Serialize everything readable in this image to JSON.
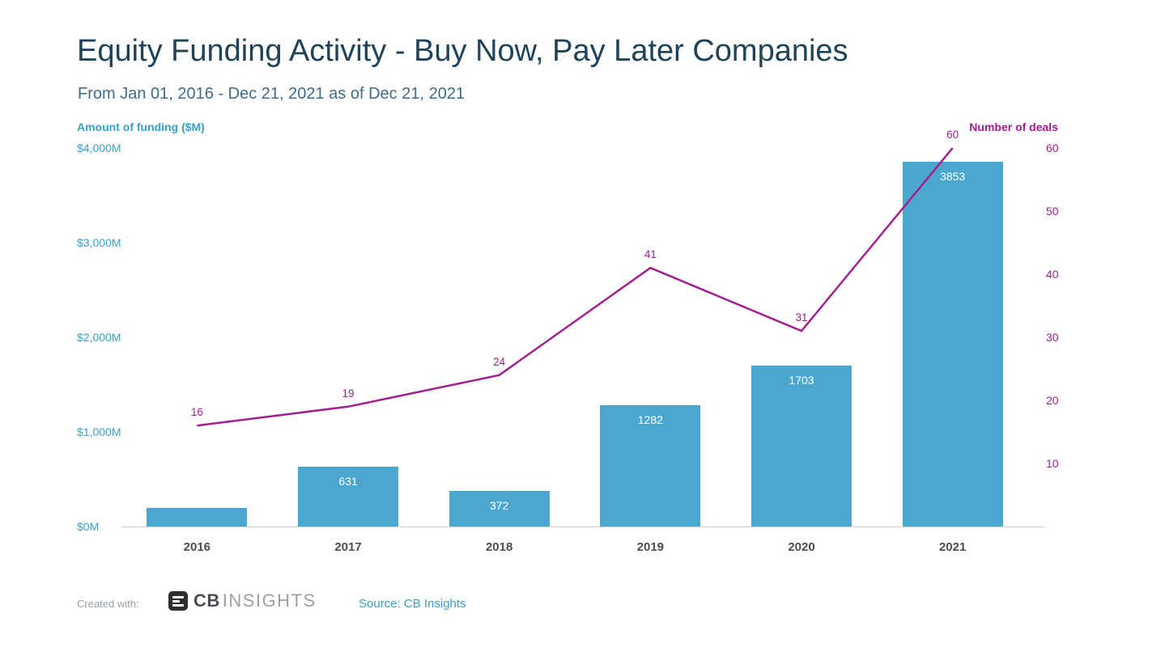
{
  "header": {
    "title": "Equity Funding Activity - Buy Now, Pay Later Companies",
    "subtitle": "From Jan 01, 2016 - Dec 21, 2021 as of Dec 21, 2021"
  },
  "chart_data": {
    "type": "bar",
    "combo": "bar+line",
    "categories": [
      "2016",
      "2017",
      "2018",
      "2019",
      "2020",
      "2021"
    ],
    "series": [
      {
        "name": "Amount of funding ($M)",
        "type": "bar",
        "axis": "left",
        "color": "#4ba7cd",
        "values": [
          200,
          631,
          372,
          1282,
          1703,
          3853
        ],
        "labels": [
          "",
          "631",
          "372",
          "1282",
          "1703",
          "3853"
        ]
      },
      {
        "name": "Number of deals",
        "type": "line",
        "axis": "right",
        "color": "#a2208e",
        "values": [
          16,
          19,
          24,
          41,
          31,
          60
        ],
        "labels": [
          "16",
          "19",
          "24",
          "41",
          "31",
          "60"
        ]
      }
    ],
    "left_axis": {
      "label": "Amount of funding ($M)",
      "ticks": [
        "$0M",
        "$1,000M",
        "$2,000M",
        "$3,000M",
        "$4,000M"
      ],
      "tick_values": [
        0,
        1000,
        2000,
        3000,
        4000
      ],
      "max": 4000
    },
    "right_axis": {
      "label": "Number of deals",
      "ticks": [
        "10",
        "20",
        "30",
        "40",
        "50",
        "60"
      ],
      "tick_values": [
        10,
        20,
        30,
        40,
        50,
        60
      ],
      "max": 60
    },
    "grid": false,
    "legend_position": "none"
  },
  "footer": {
    "created_with": "Created with:",
    "logo_cb": "CB",
    "logo_insights": "INSIGHTS",
    "source": "Source: CB Insights"
  },
  "colors": {
    "bar": "#4ba7cd",
    "line": "#a2208e",
    "title": "#204358",
    "subtitle": "#3f6c86",
    "left_axis_text": "#3ba0c8",
    "right_axis_text": "#a2208e",
    "x_label_text": "#4d4d4d"
  }
}
